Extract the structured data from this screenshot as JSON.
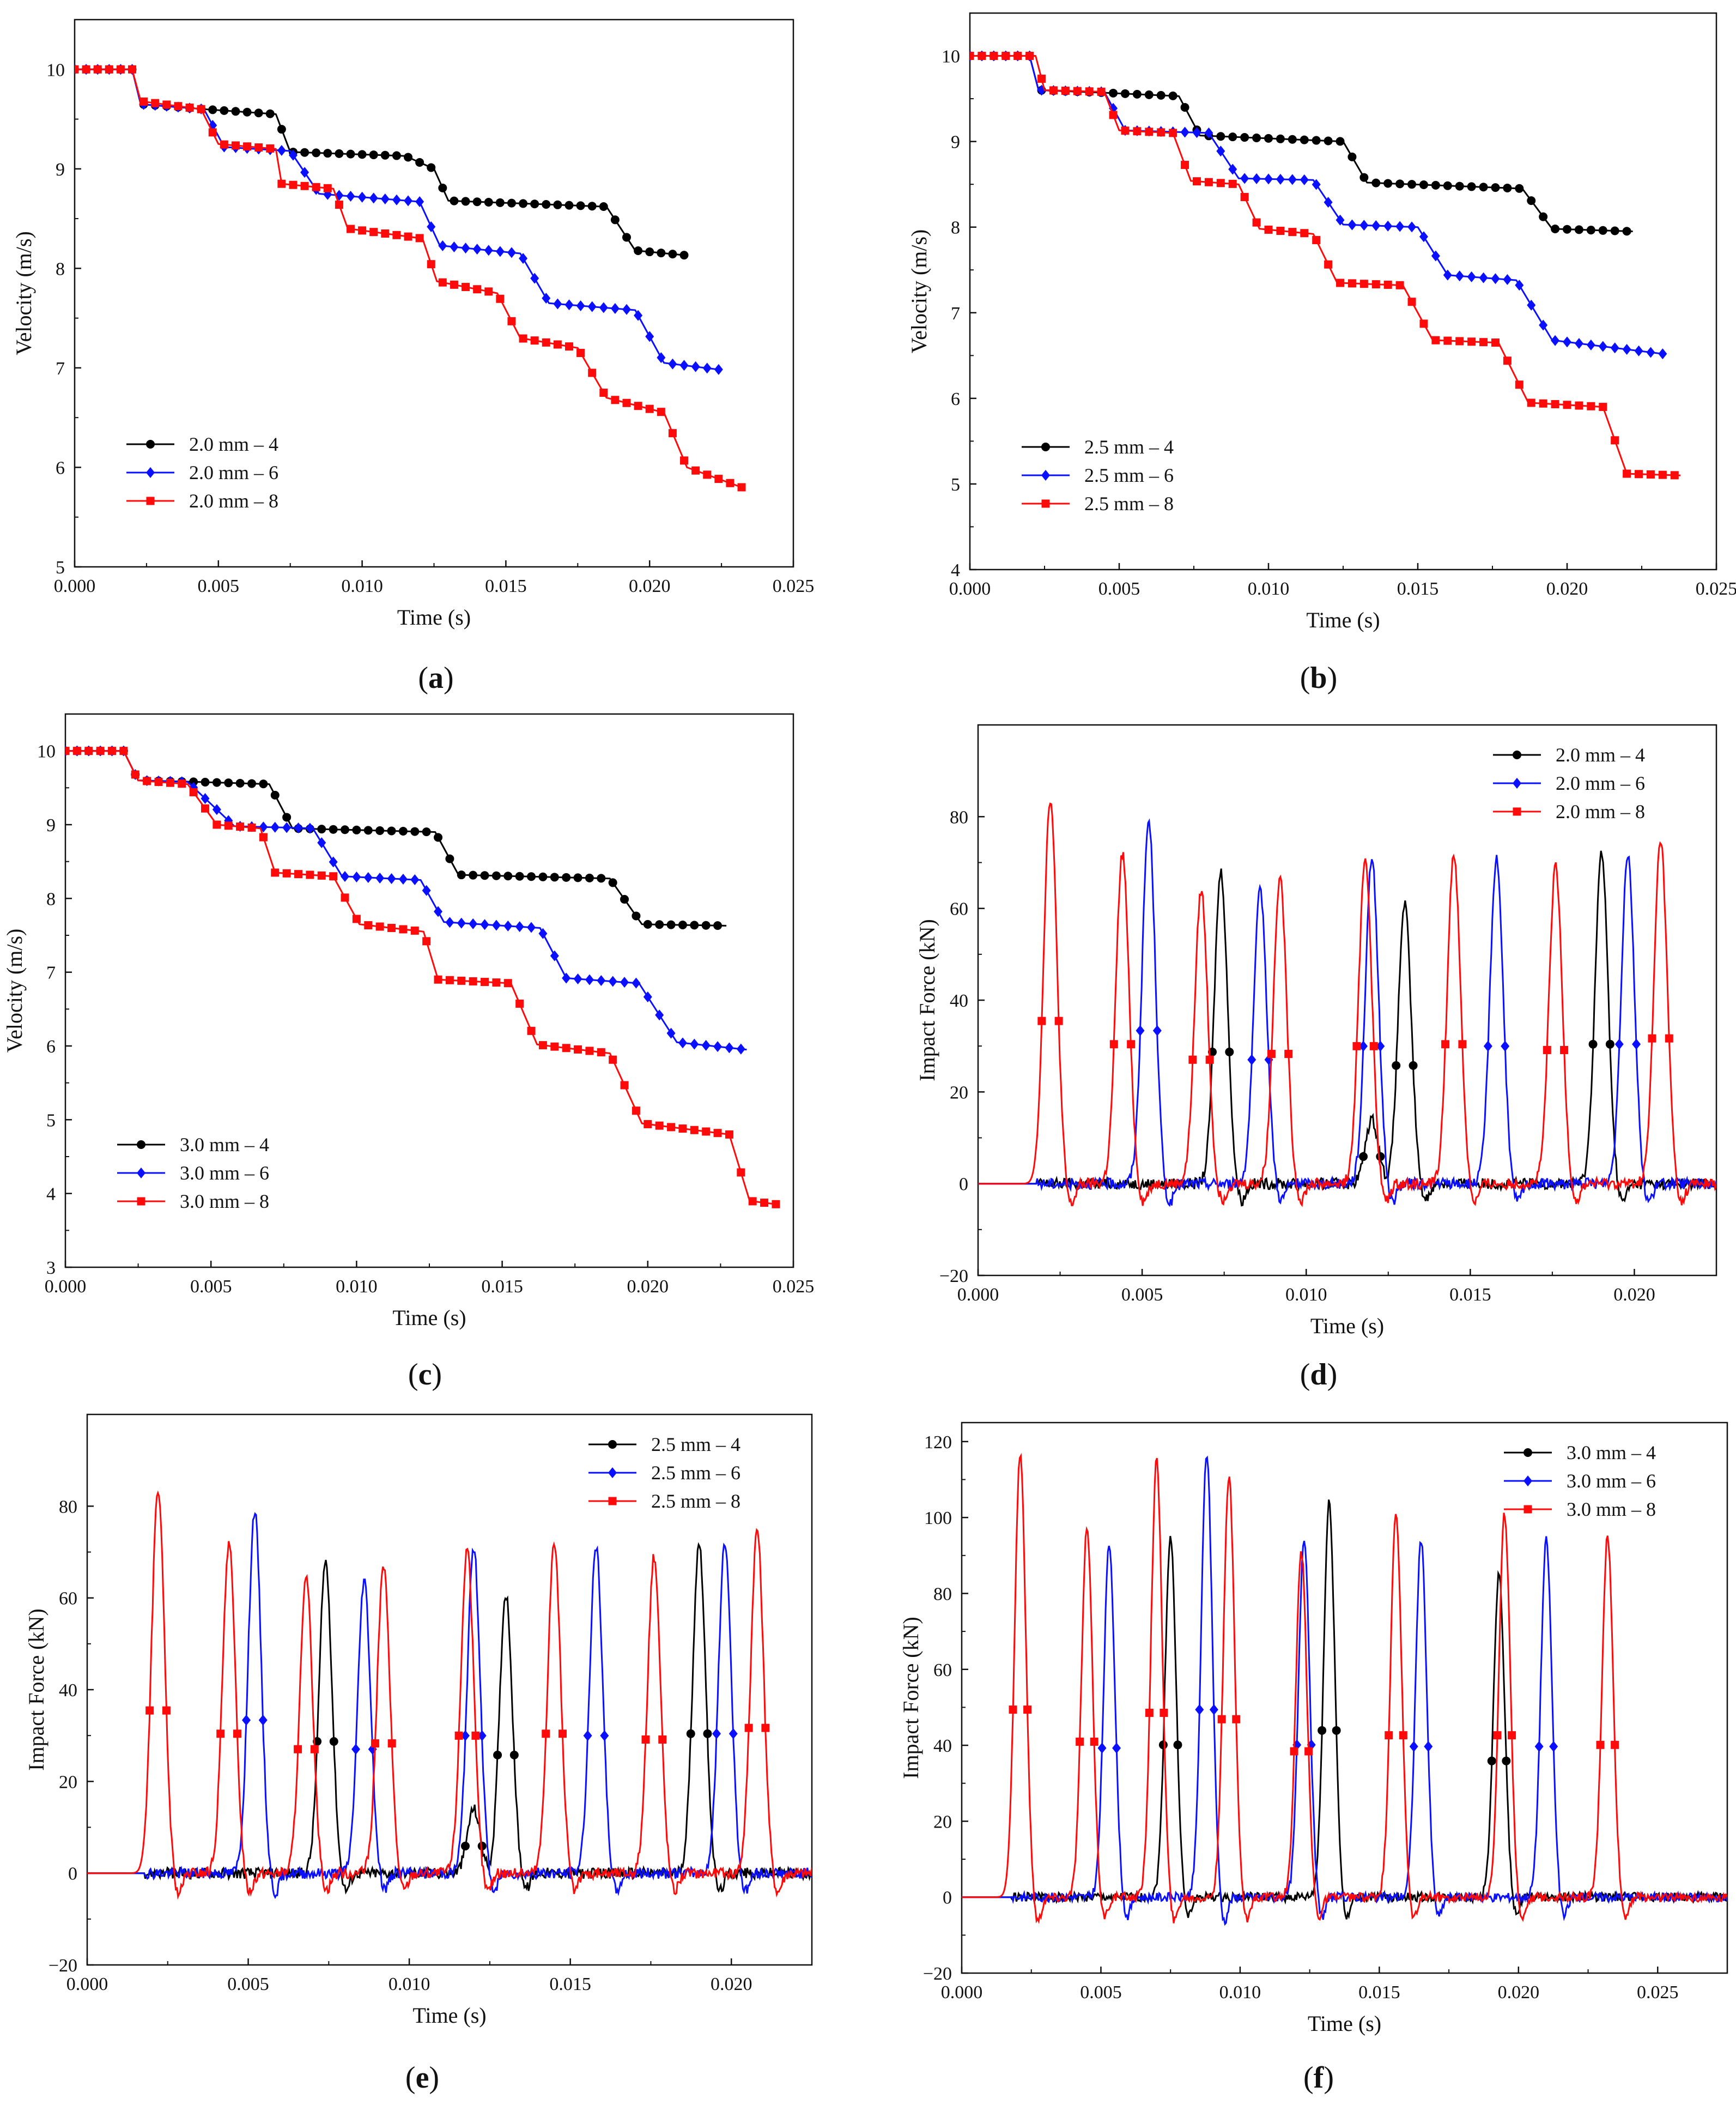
{
  "figure": {
    "panels": [
      {
        "id": "a",
        "caption_letter": "a"
      },
      {
        "id": "b",
        "caption_letter": "b"
      },
      {
        "id": "c",
        "caption_letter": "c"
      },
      {
        "id": "d",
        "caption_letter": "d"
      },
      {
        "id": "e",
        "caption_letter": "e"
      },
      {
        "id": "f",
        "caption_letter": "f"
      }
    ],
    "colors": {
      "black": "#000000",
      "blue": "#0a10ff",
      "red": "#ff0a0a",
      "axis": "#111111"
    }
  },
  "chart_data": [
    {
      "id": "a",
      "type": "line",
      "title": "",
      "xlabel": "Time (s)",
      "ylabel": "Velocity (m/s)",
      "xlim": [
        0,
        0.025
      ],
      "ylim": [
        5,
        10.5
      ],
      "xticks": [
        0,
        0.005,
        0.01,
        0.015,
        0.02,
        0.025
      ],
      "xtick_labels": [
        "0.000",
        "0.005",
        "0.010",
        "0.015",
        "0.020",
        "0.025"
      ],
      "yticks": [
        5,
        6,
        7,
        8,
        9,
        10
      ],
      "ytick_labels": [
        "5",
        "6",
        "7",
        "8",
        "9",
        "10"
      ],
      "legend": "bottom-left",
      "series": [
        {
          "name": "2.0 mm – 4",
          "color": "#000000",
          "marker": "circle",
          "x": [
            0,
            0.002,
            0.0023,
            0.0045,
            0.007,
            0.0075,
            0.0115,
            0.0125,
            0.013,
            0.0185,
            0.0195,
            0.0213
          ],
          "y": [
            10,
            10,
            9.65,
            9.6,
            9.55,
            9.17,
            9.13,
            9.0,
            8.68,
            8.62,
            8.18,
            8.13
          ]
        },
        {
          "name": "2.0 mm – 6",
          "color": "#0a10ff",
          "marker": "diamond",
          "x": [
            0,
            0.002,
            0.0023,
            0.0045,
            0.0052,
            0.0075,
            0.0085,
            0.012,
            0.0127,
            0.0155,
            0.0165,
            0.0195,
            0.0205,
            0.0225
          ],
          "y": [
            10,
            10,
            9.65,
            9.6,
            9.22,
            9.18,
            8.75,
            8.67,
            8.23,
            8.15,
            7.65,
            7.58,
            7.05,
            6.98
          ]
        },
        {
          "name": "2.0 mm – 8",
          "color": "#ff0a0a",
          "marker": "square",
          "x": [
            0,
            0.002,
            0.0023,
            0.0044,
            0.005,
            0.007,
            0.0072,
            0.009,
            0.0095,
            0.0121,
            0.0126,
            0.0147,
            0.0155,
            0.0175,
            0.0185,
            0.0205,
            0.0213,
            0.0232
          ],
          "y": [
            10,
            10,
            9.68,
            9.6,
            9.25,
            9.2,
            8.85,
            8.8,
            8.4,
            8.3,
            7.87,
            7.75,
            7.3,
            7.2,
            6.7,
            6.55,
            6.0,
            5.8
          ]
        }
      ]
    },
    {
      "id": "b",
      "type": "line",
      "title": "",
      "xlabel": "Time (s)",
      "ylabel": "Velocity (m/s)",
      "xlim": [
        0,
        0.025
      ],
      "ylim": [
        4,
        10.5
      ],
      "xticks": [
        0,
        0.005,
        0.01,
        0.015,
        0.02,
        0.025
      ],
      "xtick_labels": [
        "0.000",
        "0.005",
        "0.010",
        "0.015",
        "0.020",
        "0.025"
      ],
      "yticks": [
        4,
        5,
        6,
        7,
        8,
        9,
        10
      ],
      "ytick_labels": [
        "4",
        "5",
        "6",
        "7",
        "8",
        "9",
        "10"
      ],
      "legend": "bottom-left",
      "series": [
        {
          "name": "2.5 mm – 4",
          "color": "#000000",
          "marker": "circle",
          "x": [
            0,
            0.002,
            0.0023,
            0.0045,
            0.007,
            0.0077,
            0.0125,
            0.0133,
            0.0185,
            0.0195,
            0.0222
          ],
          "y": [
            10,
            10,
            9.6,
            9.57,
            9.53,
            9.07,
            9.0,
            8.52,
            8.45,
            7.98,
            7.95
          ]
        },
        {
          "name": "2.5 mm – 6",
          "color": "#0a10ff",
          "marker": "diamond",
          "x": [
            0,
            0.002,
            0.0023,
            0.0045,
            0.0052,
            0.008,
            0.009,
            0.0115,
            0.0125,
            0.015,
            0.016,
            0.0183,
            0.0195,
            0.0232
          ],
          "y": [
            10,
            10,
            9.6,
            9.58,
            9.13,
            9.1,
            8.57,
            8.55,
            8.03,
            8.0,
            7.44,
            7.38,
            6.68,
            6.52
          ]
        },
        {
          "name": "2.5 mm – 8",
          "color": "#ff0a0a",
          "marker": "square",
          "x": [
            0,
            0.0022,
            0.0025,
            0.0045,
            0.005,
            0.0068,
            0.0074,
            0.009,
            0.0097,
            0.0115,
            0.0123,
            0.0145,
            0.0155,
            0.0177,
            0.0187,
            0.0212,
            0.022,
            0.0238
          ],
          "y": [
            10,
            10,
            9.6,
            9.58,
            9.13,
            9.1,
            8.54,
            8.5,
            7.98,
            7.92,
            7.35,
            7.32,
            6.68,
            6.65,
            5.95,
            5.9,
            5.12,
            5.1
          ]
        }
      ]
    },
    {
      "id": "c",
      "type": "line",
      "title": "",
      "xlabel": "Time (s)",
      "ylabel": "Velocity (m/s)",
      "xlim": [
        0,
        0.025
      ],
      "ylim": [
        3,
        10.5
      ],
      "xticks": [
        0,
        0.005,
        0.01,
        0.015,
        0.02,
        0.025
      ],
      "xtick_labels": [
        "0.000",
        "0.005",
        "0.010",
        "0.015",
        "0.020",
        "0.025"
      ],
      "yticks": [
        3,
        4,
        5,
        6,
        7,
        8,
        9,
        10
      ],
      "ytick_labels": [
        "3",
        "4",
        "5",
        "6",
        "7",
        "8",
        "9",
        "10"
      ],
      "legend": "bottom-left",
      "series": [
        {
          "name": "3.0 mm – 4",
          "color": "#000000",
          "marker": "circle",
          "x": [
            0,
            0.002,
            0.0025,
            0.0045,
            0.007,
            0.0078,
            0.0127,
            0.0135,
            0.0187,
            0.0198,
            0.0227
          ],
          "y": [
            10,
            10,
            9.6,
            9.58,
            9.55,
            8.95,
            8.9,
            8.32,
            8.27,
            7.65,
            7.63
          ]
        },
        {
          "name": "3.0 mm – 6",
          "color": "#0a10ff",
          "marker": "diamond",
          "x": [
            0,
            0.002,
            0.0025,
            0.0042,
            0.0058,
            0.0085,
            0.0095,
            0.0122,
            0.013,
            0.0163,
            0.0172,
            0.0197,
            0.021,
            0.0234
          ],
          "y": [
            10,
            10,
            9.6,
            9.58,
            8.98,
            8.95,
            8.3,
            8.25,
            7.68,
            7.6,
            6.92,
            6.85,
            6.05,
            5.95
          ]
        },
        {
          "name": "3.0 mm – 8",
          "color": "#ff0a0a",
          "marker": "square",
          "x": [
            0,
            0.002,
            0.0025,
            0.0042,
            0.0052,
            0.0067,
            0.0072,
            0.0092,
            0.0101,
            0.0123,
            0.0128,
            0.0153,
            0.0162,
            0.0187,
            0.0198,
            0.0228,
            0.0235,
            0.0245
          ],
          "y": [
            10,
            10,
            9.6,
            9.55,
            9.0,
            8.95,
            8.35,
            8.3,
            7.65,
            7.55,
            6.9,
            6.85,
            6.02,
            5.9,
            4.95,
            4.8,
            3.9,
            3.85
          ]
        }
      ]
    },
    {
      "id": "d",
      "type": "line",
      "title": "",
      "xlabel": "Time (s)",
      "ylabel": "Impact Force (kN)",
      "xlim": [
        0,
        0.0225
      ],
      "ylim": [
        -20,
        100
      ],
      "xticks": [
        0,
        0.005,
        0.01,
        0.015,
        0.02
      ],
      "xtick_labels": [
        "0.000",
        "0.005",
        "0.010",
        "0.015",
        "0.020"
      ],
      "yticks": [
        -20,
        0,
        20,
        40,
        60,
        80
      ],
      "ytick_labels": [
        "−20",
        "0",
        "20",
        "40",
        "60",
        "80"
      ],
      "legend": "top-right",
      "series": [
        {
          "name": "2.0 mm – 4",
          "color": "#000000",
          "marker": "circle",
          "peaks": [
            [
              0.0074,
              68
            ],
            [
              0.012,
              14
            ],
            [
              0.013,
              61
            ],
            [
              0.019,
              72
            ]
          ]
        },
        {
          "name": "2.0 mm – 6",
          "color": "#0a10ff",
          "marker": "diamond",
          "peaks": [
            [
              0.0052,
              79
            ],
            [
              0.0086,
              64
            ],
            [
              0.012,
              71
            ],
            [
              0.0158,
              71
            ],
            [
              0.0198,
              72
            ]
          ]
        },
        {
          "name": "2.0 mm – 8",
          "color": "#ff0a0a",
          "marker": "square",
          "peaks": [
            [
              0.0022,
              84
            ],
            [
              0.0044,
              72
            ],
            [
              0.0068,
              64
            ],
            [
              0.0092,
              67
            ],
            [
              0.0118,
              71
            ],
            [
              0.0145,
              72
            ],
            [
              0.0176,
              69
            ],
            [
              0.0208,
              75
            ]
          ]
        }
      ]
    },
    {
      "id": "e",
      "type": "line",
      "title": "",
      "xlabel": "Time (s)",
      "ylabel": "Impact Force (kN)",
      "xlim": [
        0,
        0.0225
      ],
      "ylim": [
        -20,
        100
      ],
      "xticks": [
        0,
        0.005,
        0.01,
        0.015,
        0.02
      ],
      "xtick_labels": [
        "0.000",
        "0.005",
        "0.010",
        "0.015",
        "0.020"
      ],
      "yticks": [
        -20,
        0,
        20,
        40,
        60,
        80
      ],
      "ytick_labels": [
        "−20",
        "0",
        "20",
        "40",
        "60",
        "80"
      ],
      "legend": "top-right",
      "series": [
        {
          "name": "2.5 mm – 4",
          "color": "#000000",
          "marker": "circle",
          "peaks": [
            [
              0.0074,
              68
            ],
            [
              0.012,
              14
            ],
            [
              0.013,
              61
            ],
            [
              0.019,
              72
            ]
          ]
        },
        {
          "name": "2.5 mm – 6",
          "color": "#0a10ff",
          "marker": "diamond",
          "peaks": [
            [
              0.0052,
              79
            ],
            [
              0.0086,
              64
            ],
            [
              0.012,
              71
            ],
            [
              0.0158,
              71
            ],
            [
              0.0198,
              72
            ]
          ]
        },
        {
          "name": "2.5 mm – 8",
          "color": "#ff0a0a",
          "marker": "square",
          "peaks": [
            [
              0.0022,
              84
            ],
            [
              0.0044,
              72
            ],
            [
              0.0068,
              64
            ],
            [
              0.0092,
              67
            ],
            [
              0.0118,
              71
            ],
            [
              0.0145,
              72
            ],
            [
              0.0176,
              69
            ],
            [
              0.0208,
              75
            ]
          ]
        }
      ]
    },
    {
      "id": "f",
      "type": "line",
      "title": "",
      "xlabel": "Time (s)",
      "ylabel": "Impact Force (kN)",
      "xlim": [
        0,
        0.0275
      ],
      "ylim": [
        -20,
        125
      ],
      "xticks": [
        0,
        0.005,
        0.01,
        0.015,
        0.02,
        0.025
      ],
      "xtick_labels": [
        "0.000",
        "0.005",
        "0.010",
        "0.015",
        "0.020",
        "0.025"
      ],
      "yticks": [
        -20,
        0,
        20,
        40,
        60,
        80,
        100,
        120
      ],
      "ytick_labels": [
        "−20",
        "0",
        "20",
        "40",
        "60",
        "80",
        "100",
        "120"
      ],
      "legend": "top-right",
      "series": [
        {
          "name": "3.0 mm – 4",
          "color": "#000000",
          "marker": "circle",
          "peaks": [
            [
              0.0075,
              95
            ],
            [
              0.0132,
              104
            ],
            [
              0.0193,
              85
            ]
          ]
        },
        {
          "name": "3.0 mm – 6",
          "color": "#0a10ff",
          "marker": "diamond",
          "peaks": [
            [
              0.0053,
              93
            ],
            [
              0.0088,
              117
            ],
            [
              0.0123,
              95
            ],
            [
              0.0165,
              94
            ],
            [
              0.021,
              94
            ]
          ]
        },
        {
          "name": "3.0 mm – 8",
          "color": "#ff0a0a",
          "marker": "square",
          "peaks": [
            [
              0.0021,
              117
            ],
            [
              0.0045,
              97
            ],
            [
              0.007,
              115
            ],
            [
              0.0096,
              111
            ],
            [
              0.0122,
              91
            ],
            [
              0.0156,
              101
            ],
            [
              0.0195,
              101
            ],
            [
              0.0232,
              95
            ]
          ]
        }
      ]
    }
  ]
}
